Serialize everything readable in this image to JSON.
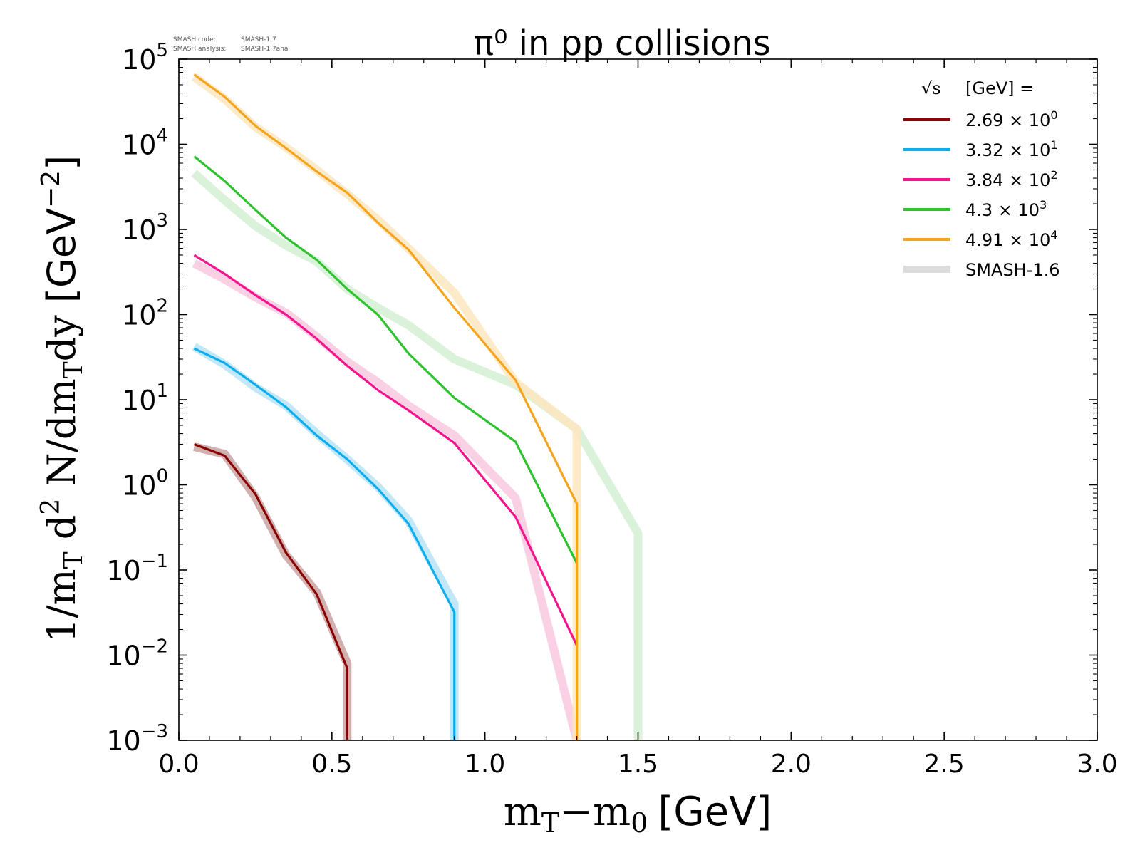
{
  "chart_data": {
    "type": "line",
    "title": "π⁰ in pp collisions",
    "watermark": {
      "code_label": "SMASH code:",
      "code_value": "SMASH-1.7",
      "analysis_label": "SMASH analysis:",
      "analysis_value": "SMASH-1.7ana"
    },
    "xlabel": {
      "m": "m",
      "T": "T",
      "minus": "−m",
      "zero": "0",
      "unit": "[GeV]"
    },
    "ylabel": {
      "pre": "1/m",
      "T": "T",
      "d": " d",
      "two": "2",
      "mid": " N/dm",
      "T2": "T",
      "dy": "dy",
      "unit": " [GeV",
      "exp": "−2",
      "close": "]"
    },
    "xlim": [
      0.0,
      3.0
    ],
    "ylim": [
      0.001,
      100000
    ],
    "yscale": "log",
    "xticks": [
      "0.0",
      "0.5",
      "1.0",
      "1.5",
      "2.0",
      "2.5",
      "3.0"
    ],
    "yticks": [
      {
        "base": "10",
        "exp": "−3"
      },
      {
        "base": "10",
        "exp": "−2"
      },
      {
        "base": "10",
        "exp": "−1"
      },
      {
        "base": "10",
        "exp": "0"
      },
      {
        "base": "10",
        "exp": "1"
      },
      {
        "base": "10",
        "exp": "2"
      },
      {
        "base": "10",
        "exp": "3"
      },
      {
        "base": "10",
        "exp": "4"
      },
      {
        "base": "10",
        "exp": "5"
      }
    ],
    "legend": {
      "position": "top-right",
      "title_sqrt": "√s",
      "title_rest": "[GeV] =",
      "reference_label": "SMASH-1.6"
    },
    "series": [
      {
        "name": "2.69 × 10",
        "exp": "0",
        "color": "#8b0000",
        "band": "#c9a2a2",
        "x": [
          0.05,
          0.15,
          0.25,
          0.35,
          0.45,
          0.55,
          0.55
        ],
        "y": [
          3.0,
          2.2,
          0.78,
          0.16,
          0.052,
          0.007,
          0.001
        ],
        "ref_y": [
          2.8,
          2.3,
          0.72,
          0.15,
          0.055,
          0.008,
          0.001
        ]
      },
      {
        "name": "3.32 × 10",
        "exp": "1",
        "color": "#0aaeef",
        "band": "#b7e4f7",
        "x": [
          0.05,
          0.15,
          0.25,
          0.35,
          0.45,
          0.55,
          0.65,
          0.75,
          0.9,
          0.9
        ],
        "y": [
          40,
          27,
          15,
          8.2,
          3.8,
          2.0,
          0.9,
          0.35,
          0.032,
          0.001
        ],
        "ref_y": [
          42,
          26,
          14,
          8.5,
          4.0,
          2.0,
          0.95,
          0.38,
          0.04,
          0.001
        ]
      },
      {
        "name": "3.84 × 10",
        "exp": "2",
        "color": "#f5148c",
        "band": "#f9c8df",
        "x": [
          0.05,
          0.15,
          0.25,
          0.35,
          0.45,
          0.55,
          0.65,
          0.75,
          0.9,
          1.1,
          1.3
        ],
        "y": [
          500,
          300,
          170,
          100,
          52,
          25,
          13,
          7.5,
          3.1,
          0.42,
          0.013
        ],
        "ref_y": [
          400,
          260,
          160,
          105,
          55,
          28,
          16,
          8.5,
          3.8,
          0.7,
          0.001
        ]
      },
      {
        "name": "4.3 × 10",
        "exp": "3",
        "color": "#2ec32e",
        "band": "#d5f0d3",
        "x": [
          0.05,
          0.15,
          0.25,
          0.35,
          0.45,
          0.55,
          0.65,
          0.75,
          0.9,
          1.1,
          1.3
        ],
        "y": [
          7200,
          3700,
          1700,
          800,
          440,
          200,
          100,
          35,
          10.5,
          3.2,
          0.12
        ],
        "ref_y": [
          4600,
          2200,
          1100,
          650,
          420,
          200,
          120,
          75,
          30,
          15,
          4.5,
          0.27,
          0.001
        ],
        "ref_x": [
          0.05,
          0.15,
          0.25,
          0.35,
          0.45,
          0.55,
          0.65,
          0.75,
          0.9,
          1.1,
          1.3,
          1.5,
          1.5
        ]
      },
      {
        "name": "4.91 × 10",
        "exp": "4",
        "color": "#f7a41d",
        "band": "#fde6c0",
        "x": [
          0.05,
          0.15,
          0.25,
          0.35,
          0.45,
          0.55,
          0.65,
          0.75,
          0.9,
          1.1,
          1.3,
          1.3
        ],
        "y": [
          66000,
          36000,
          16500,
          9000,
          4800,
          2700,
          1200,
          580,
          120,
          17,
          0.6,
          0.001
        ],
        "ref_y": [
          62000,
          34000,
          16000,
          9200,
          5000,
          2600,
          1300,
          600,
          180,
          16,
          4.5,
          0.001
        ]
      }
    ],
    "grid": false
  }
}
